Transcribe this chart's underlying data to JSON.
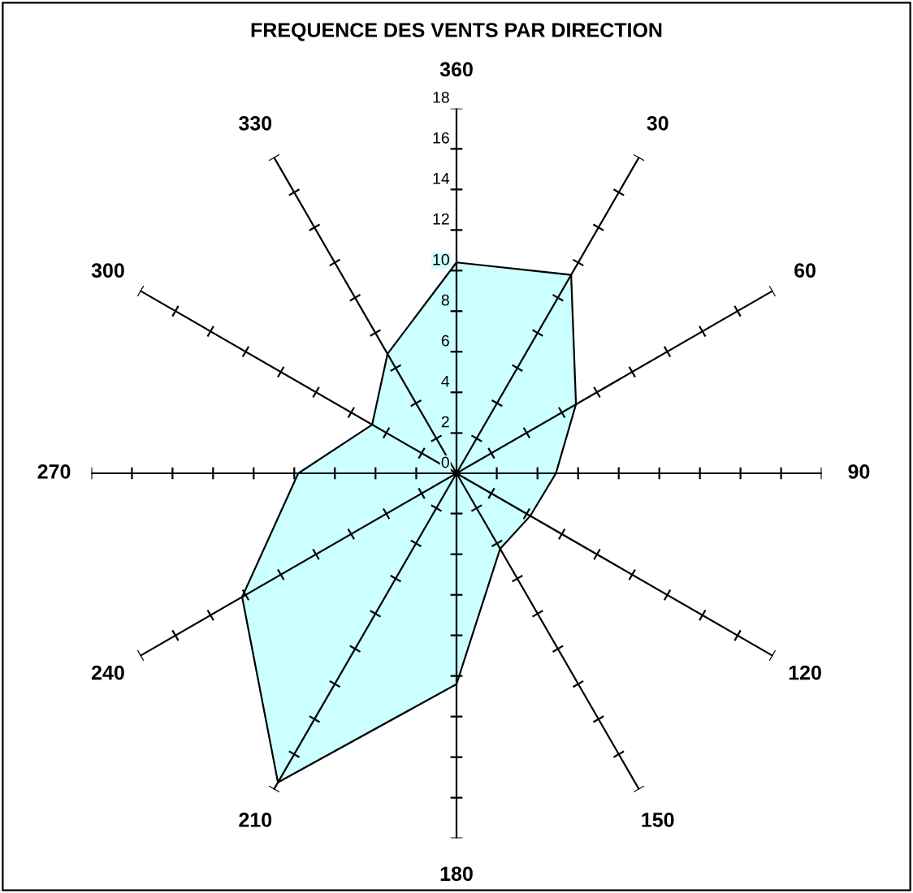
{
  "chart_data": {
    "type": "radar",
    "title": "FREQUENCE DES VENTS PAR DIRECTION",
    "categories": [
      "360",
      "30",
      "60",
      "90",
      "120",
      "150",
      "180",
      "210",
      "240",
      "270",
      "300",
      "330"
    ],
    "series": [
      {
        "color": "#ccffff",
        "values": [
          10.4,
          11.3,
          6.8,
          4.9,
          4.2,
          4.3,
          10.4,
          17.6,
          12.2,
          7.8,
          4.8,
          6.8
        ]
      }
    ],
    "ylim": [
      0,
      18
    ],
    "yticks": [
      0,
      2,
      4,
      6,
      8,
      10,
      12,
      14,
      16,
      18
    ]
  }
}
